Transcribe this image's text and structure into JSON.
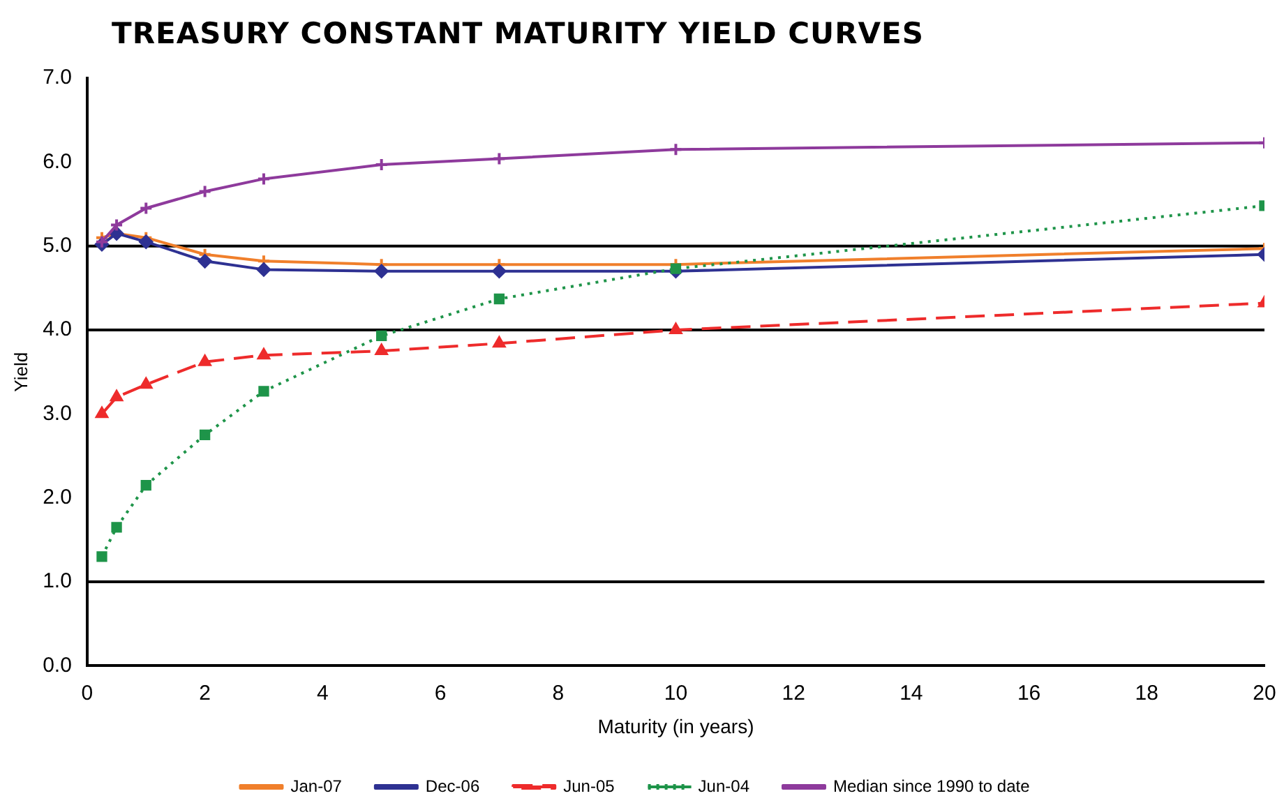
{
  "chart_data": {
    "type": "line",
    "title": "TREASURY CONSTANT MATURITY YIELD CURVES",
    "xlabel": "Maturity (in years)",
    "ylabel": "Yield",
    "x": [
      0.25,
      0.5,
      1,
      2,
      3,
      5,
      7,
      10,
      20
    ],
    "series": [
      {
        "name": "Jan-07",
        "color": "#f07f2b",
        "marker": "cross",
        "line_style": "solid",
        "values": [
          5.1,
          5.15,
          5.1,
          4.9,
          4.82,
          4.78,
          4.78,
          4.78,
          4.97
        ]
      },
      {
        "name": "Dec-06",
        "color": "#2e3192",
        "marker": "diamond",
        "line_style": "solid",
        "values": [
          5.02,
          5.15,
          5.05,
          4.82,
          4.72,
          4.7,
          4.7,
          4.7,
          4.9
        ]
      },
      {
        "name": "Jun-05",
        "color": "#ee2b2b",
        "marker": "triangle",
        "line_style": "dashed",
        "values": [
          3.0,
          3.2,
          3.35,
          3.62,
          3.7,
          3.75,
          3.84,
          4.0,
          4.32
        ]
      },
      {
        "name": "Jun-04",
        "color": "#1e9449",
        "marker": "square",
        "line_style": "dotted",
        "values": [
          1.3,
          1.65,
          2.15,
          2.75,
          3.27,
          3.93,
          4.37,
          4.73,
          5.48
        ]
      },
      {
        "name": "Median since 1990 to date",
        "color": "#8e3a9c",
        "marker": "cross",
        "line_style": "solid",
        "values": [
          5.05,
          5.25,
          5.45,
          5.65,
          5.8,
          5.97,
          6.04,
          6.15,
          6.23
        ]
      }
    ],
    "xlim": [
      0,
      20
    ],
    "xticks": [
      0,
      2,
      4,
      6,
      8,
      10,
      12,
      14,
      16,
      18,
      20
    ],
    "ylim": [
      0,
      7
    ],
    "yticks": [
      {
        "value": 0,
        "label": "0.0"
      },
      {
        "value": 1,
        "label": "1.0"
      },
      {
        "value": 2,
        "label": "2.0"
      },
      {
        "value": 3,
        "label": "3.0"
      },
      {
        "value": 4,
        "label": "4.0"
      },
      {
        "value": 5,
        "label": "5.0"
      },
      {
        "value": 6,
        "label": "6.0"
      },
      {
        "value": 7,
        "label": "7.0"
      }
    ],
    "ref_lines": [
      {
        "axis": "y",
        "value": 1,
        "color": "#000000"
      },
      {
        "axis": "y",
        "value": 4,
        "color": "#000000"
      },
      {
        "axis": "y",
        "value": 5,
        "color": "#000000"
      }
    ],
    "grid": false,
    "legend": "bottom"
  }
}
